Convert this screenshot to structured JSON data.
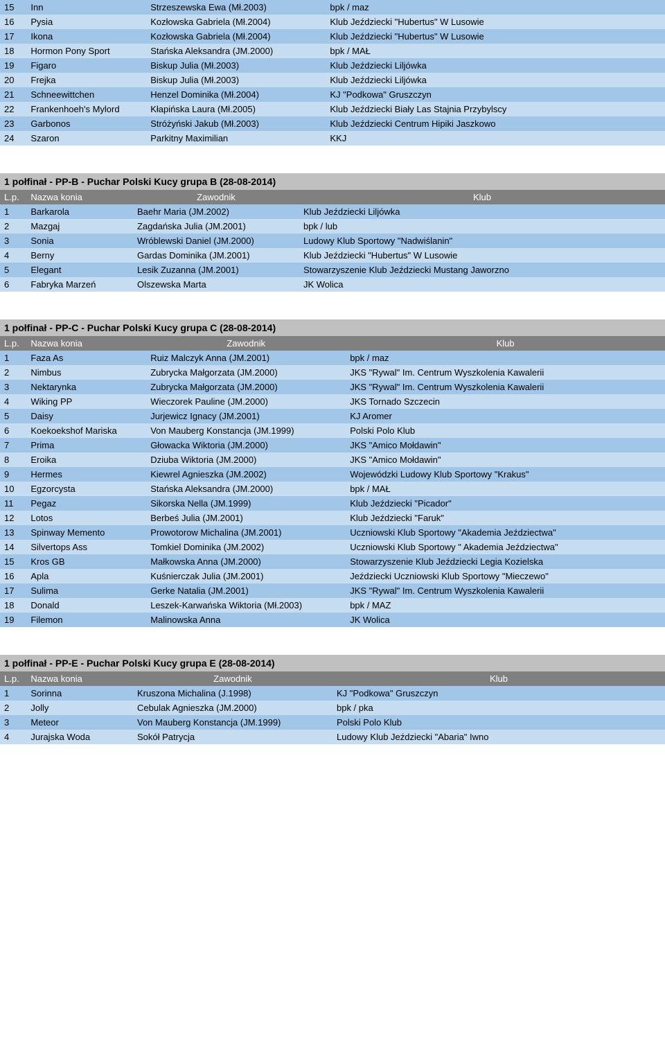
{
  "colors": {
    "header_bg": "#808080",
    "header_fg": "#ffffff",
    "title_bg": "#c0c0c0",
    "row_a": "#a2c6e8",
    "row_b": "#c6dcf0",
    "page_bg": "#ffffff"
  },
  "col_headers": {
    "lp": "L.p.",
    "horse": "Nazwa konia",
    "rider": "Zawodnik",
    "club": "Klub"
  },
  "table0": {
    "cols": [
      "18%",
      "27%",
      "55%"
    ],
    "rows": [
      [
        "15",
        "Inn",
        "Strzeszewska Ewa (Mł.2003)",
        "bpk / maz"
      ],
      [
        "16",
        "Pysia",
        "Kozłowska Gabriela (Mł.2004)",
        "Klub Jeździecki \"Hubertus\" W Lusowie"
      ],
      [
        "17",
        "Ikona",
        "Kozłowska Gabriela (Mł.2004)",
        "Klub Jeździecki \"Hubertus\" W Lusowie"
      ],
      [
        "18",
        "Hormon Pony Sport",
        "Stańska Aleksandra (JM.2000)",
        "bpk / MAŁ"
      ],
      [
        "19",
        "Figaro",
        "Biskup Julia (Mł.2003)",
        "Klub Jeździecki Liljówka"
      ],
      [
        "20",
        "Frejka",
        "Biskup Julia (Mł.2003)",
        "Klub Jeździecki Liljówka"
      ],
      [
        "21",
        "Schneewittchen",
        "Henzel Dominika (Mł.2004)",
        "KJ \"Podkowa\" Gruszczyn"
      ],
      [
        "22",
        "Frankenhoeh's Mylord",
        "Kłapińska Laura (Mł.2005)",
        "Klub Jeździecki Biały Las Stajnia Przybylscy"
      ],
      [
        "23",
        "Garbonos",
        "Stróżyński Jakub (Mł.2003)",
        "Klub Jeździecki Centrum Hipiki Jaszkowo"
      ],
      [
        "24",
        "Szaron",
        "Parkitny Maximilian",
        "KKJ"
      ]
    ]
  },
  "table1": {
    "title": "1 połfinał - PP-B - Puchar Polski Kucy grupa B (28-08-2014)",
    "cols": [
      "16%",
      "25%",
      "55%"
    ],
    "rows": [
      [
        "1",
        "Barkarola",
        "Baehr Maria (JM.2002)",
        "Klub Jeździecki Liljówka"
      ],
      [
        "2",
        "Mazgaj",
        "Zagdańska Julia (JM.2001)",
        "bpk / lub"
      ],
      [
        "3",
        "Sonia",
        "Wróblewski Daniel (JM.2000)",
        "Ludowy Klub Sportowy \"Nadwiślanin\""
      ],
      [
        "4",
        "Berny",
        "Gardas Dominika (JM.2001)",
        "Klub Jeździecki \"Hubertus\" W Lusowie"
      ],
      [
        "5",
        "Elegant",
        "Lesik Zuzanna (JM.2001)",
        "Stowarzyszenie Klub Jeździecki Mustang Jaworzno"
      ],
      [
        "6",
        "Fabryka Marzeń",
        "Olszewska Marta",
        "JK Wolica"
      ]
    ]
  },
  "table2": {
    "title": "1 połfinał - PP-C - Puchar Polski Kucy grupa C (28-08-2014)",
    "cols": [
      "18%",
      "30%",
      "48%"
    ],
    "rows": [
      [
        "1",
        "Faza As",
        "Ruiz Malczyk Anna (JM.2001)",
        "bpk / maz"
      ],
      [
        "2",
        "Nimbus",
        "Zubrycka Małgorzata (JM.2000)",
        "JKS \"Rywal\" Im. Centrum Wyszkolenia Kawalerii"
      ],
      [
        "3",
        "Nektarynka",
        "Zubrycka Małgorzata (JM.2000)",
        "JKS \"Rywal\" Im. Centrum Wyszkolenia Kawalerii"
      ],
      [
        "4",
        "Wiking PP",
        "Wieczorek Pauline (JM.2000)",
        "JKS Tornado Szczecin"
      ],
      [
        "5",
        "Daisy",
        "Jurjewicz Ignacy (JM.2001)",
        "KJ Aromer"
      ],
      [
        "6",
        "Koekoekshof Mariska",
        "Von Mauberg Konstancja (JM.1999)",
        "Polski Polo Klub"
      ],
      [
        "7",
        "Prima",
        "Głowacka Wiktoria (JM.2000)",
        "JKS \"Amico Mołdawin\""
      ],
      [
        "8",
        "Eroika",
        "Dziuba Wiktoria (JM.2000)",
        "JKS \"Amico Mołdawin\""
      ],
      [
        "9",
        "Hermes",
        "Kiewrel Agnieszka (JM.2002)",
        "Wojewódzki Ludowy Klub Sportowy \"Krakus\""
      ],
      [
        "10",
        "Egzorcysta",
        "Stańska Aleksandra (JM.2000)",
        "bpk / MAŁ"
      ],
      [
        "11",
        "Pegaz",
        "Sikorska Nella (JM.1999)",
        "Klub Jeździecki \"Picador\""
      ],
      [
        "12",
        "Lotos",
        "Berbeś Julia (JM.2001)",
        "Klub Jeździecki \"Faruk\""
      ],
      [
        "13",
        "Spinway Memento",
        "Prowotorow Michalina (JM.2001)",
        "Uczniowski Klub Sportowy \"Akademia Jeździectwa\""
      ],
      [
        "14",
        "Silvertops Ass",
        "Tomkiel Dominika (JM.2002)",
        "Uczniowski Klub Sportowy \" Akademia Jeździectwa\""
      ],
      [
        "15",
        "Kros GB",
        "Małkowska Anna (JM.2000)",
        "Stowarzyszenie Klub Jeździecki Legia Kozielska"
      ],
      [
        "16",
        "Apla",
        "Kuśnierczak Julia (JM.2001)",
        "Jeździecki Uczniowski Klub Sportowy \"Mieczewo\""
      ],
      [
        "17",
        "Sulima",
        "Gerke Natalia (JM.2001)",
        "JKS \"Rywal\" Im. Centrum Wyszkolenia Kawalerii"
      ],
      [
        "18",
        "Donald",
        "Leszek-Karwańska Wiktoria (Mł.2003)",
        "bpk / MAZ"
      ],
      [
        "19",
        "Filemon",
        "Malinowska Anna",
        "JK Wolica"
      ]
    ]
  },
  "table3": {
    "title": "1 połfinał - PP-E - Puchar Polski Kucy grupa E (28-08-2014)",
    "cols": [
      "16%",
      "30%",
      "50%"
    ],
    "rows": [
      [
        "1",
        "Sorinna",
        "Kruszona Michalina (J.1998)",
        "KJ \"Podkowa\" Gruszczyn"
      ],
      [
        "2",
        "Jolly",
        "Cebulak Agnieszka (JM.2000)",
        "bpk / pka"
      ],
      [
        "3",
        "Meteor",
        "Von Mauberg Konstancja (JM.1999)",
        "Polski Polo Klub"
      ],
      [
        "4",
        "Jurajska Woda",
        "Sokół Patrycja",
        "Ludowy Klub Jeździecki \"Abaria\" Iwno"
      ]
    ]
  }
}
